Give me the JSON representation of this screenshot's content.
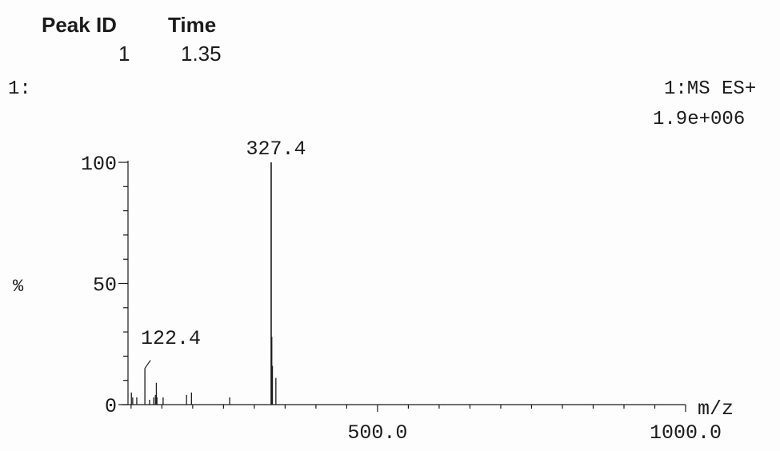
{
  "header": {
    "peak_id_label": "Peak ID",
    "time_label": "Time",
    "peak_id_value": "1",
    "time_value": "1.35",
    "trace_label": "1:",
    "scan_label": "1:MS ES+",
    "intensity": "1.9e+006"
  },
  "chart_data": {
    "type": "bar",
    "xlabel": "m/z",
    "ylabel": "%",
    "xlim": [
      95,
      1000
    ],
    "ylim": [
      0,
      100
    ],
    "x_ticks": [
      "500.0",
      "1000.0"
    ],
    "y_ticks": [
      "0",
      "50",
      "100"
    ],
    "peaks": [
      {
        "mz": 100.5,
        "pct": 5
      },
      {
        "mz": 102.6,
        "pct": 3
      },
      {
        "mz": 109.2,
        "pct": 3
      },
      {
        "mz": 122.4,
        "pct": 15
      },
      {
        "mz": 130.0,
        "pct": 2
      },
      {
        "mz": 136.7,
        "pct": 3
      },
      {
        "mz": 139.5,
        "pct": 4
      },
      {
        "mz": 141.0,
        "pct": 9
      },
      {
        "mz": 142.0,
        "pct": 3
      },
      {
        "mz": 152.0,
        "pct": 3
      },
      {
        "mz": 190.0,
        "pct": 4
      },
      {
        "mz": 198.0,
        "pct": 5
      },
      {
        "mz": 260.0,
        "pct": 3
      },
      {
        "mz": 327.4,
        "pct": 100
      },
      {
        "mz": 328.4,
        "pct": 28
      },
      {
        "mz": 329.4,
        "pct": 16
      },
      {
        "mz": 335.0,
        "pct": 11
      }
    ],
    "annotations": [
      {
        "text": "327.4",
        "mz": 327.4
      },
      {
        "text": "122.4",
        "mz": 122.4
      }
    ]
  }
}
